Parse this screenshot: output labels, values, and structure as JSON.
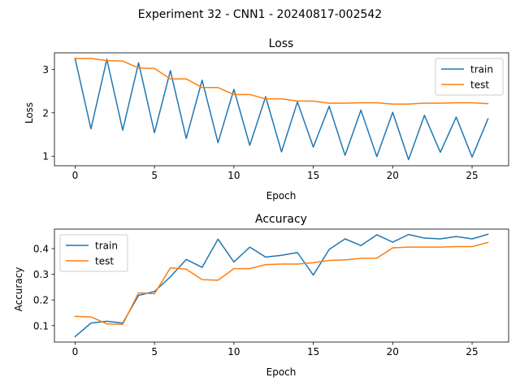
{
  "figure": {
    "suptitle": "Experiment 32 - CNN1 - 20240817-002542"
  },
  "chart_data": [
    {
      "type": "line",
      "title": "Loss",
      "xlabel": "Epoch",
      "ylabel": "Loss",
      "x": [
        0,
        1,
        2,
        3,
        4,
        5,
        6,
        7,
        8,
        9,
        10,
        11,
        12,
        13,
        14,
        15,
        16,
        17,
        18,
        19,
        20,
        21,
        22,
        23,
        24,
        25,
        26
      ],
      "xlim": [
        -1.3,
        27.3
      ],
      "ylim": [
        0.78,
        3.38
      ],
      "xticks": [
        0,
        5,
        10,
        15,
        20,
        25
      ],
      "yticks": [
        1,
        2,
        3
      ],
      "legend_position": "top-right",
      "grid": false,
      "series": [
        {
          "name": "train",
          "color": "#1f77b4",
          "values": [
            3.25,
            1.63,
            3.23,
            1.6,
            3.15,
            1.54,
            2.97,
            1.41,
            2.75,
            1.31,
            2.54,
            1.25,
            2.37,
            1.1,
            2.25,
            1.21,
            2.15,
            1.02,
            2.06,
            0.99,
            2.01,
            0.92,
            1.94,
            1.09,
            1.9,
            0.98,
            1.86
          ]
        },
        {
          "name": "test",
          "color": "#ff7f0e",
          "values": [
            3.25,
            3.25,
            3.2,
            3.19,
            3.03,
            3.02,
            2.78,
            2.78,
            2.58,
            2.58,
            2.42,
            2.42,
            2.32,
            2.32,
            2.27,
            2.27,
            2.22,
            2.22,
            2.23,
            2.23,
            2.2,
            2.2,
            2.22,
            2.22,
            2.23,
            2.23,
            2.21
          ]
        }
      ]
    },
    {
      "type": "line",
      "title": "Accuracy",
      "xlabel": "Epoch",
      "ylabel": "Accuracy",
      "x": [
        0,
        1,
        2,
        3,
        4,
        5,
        6,
        7,
        8,
        9,
        10,
        11,
        12,
        13,
        14,
        15,
        16,
        17,
        18,
        19,
        20,
        21,
        22,
        23,
        24,
        25,
        26
      ],
      "xlim": [
        -1.3,
        27.3
      ],
      "ylim": [
        0.036,
        0.476
      ],
      "xticks": [
        0,
        5,
        10,
        15,
        20,
        25
      ],
      "yticks": [
        0.1,
        0.2,
        0.3,
        0.4
      ],
      "legend_position": "top-left",
      "grid": false,
      "series": [
        {
          "name": "train",
          "color": "#1f77b4",
          "values": [
            0.057,
            0.11,
            0.117,
            0.11,
            0.218,
            0.233,
            0.29,
            0.358,
            0.327,
            0.437,
            0.348,
            0.406,
            0.367,
            0.374,
            0.385,
            0.297,
            0.397,
            0.438,
            0.412,
            0.454,
            0.425,
            0.455,
            0.441,
            0.438,
            0.447,
            0.438,
            0.456
          ]
        },
        {
          "name": "test",
          "color": "#ff7f0e",
          "values": [
            0.136,
            0.134,
            0.107,
            0.105,
            0.228,
            0.224,
            0.325,
            0.32,
            0.279,
            0.277,
            0.322,
            0.322,
            0.338,
            0.34,
            0.34,
            0.345,
            0.354,
            0.356,
            0.362,
            0.363,
            0.403,
            0.406,
            0.406,
            0.406,
            0.408,
            0.408,
            0.424
          ]
        }
      ]
    }
  ]
}
